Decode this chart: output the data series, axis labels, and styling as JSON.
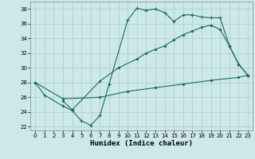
{
  "bg_color": "#cce8e8",
  "grid_color": "#aacccc",
  "line_color": "#1a6b5a",
  "line1_x": [
    0,
    1,
    3,
    4,
    5,
    6,
    7,
    8,
    10,
    11,
    12,
    13,
    14,
    15,
    16,
    17,
    18,
    19,
    20,
    21,
    22,
    23
  ],
  "line1_y": [
    28.0,
    26.3,
    24.8,
    24.2,
    22.8,
    22.2,
    23.5,
    27.8,
    36.5,
    38.1,
    37.8,
    38.0,
    37.5,
    36.3,
    37.2,
    37.2,
    36.9,
    36.8,
    36.8,
    33.0,
    30.5,
    29.0
  ],
  "line2_x": [
    3,
    4,
    7,
    9,
    11,
    12,
    13,
    14,
    15,
    16,
    17,
    18,
    19,
    20,
    21,
    22,
    23
  ],
  "line2_y": [
    25.5,
    24.3,
    28.2,
    30.0,
    31.2,
    32.0,
    32.5,
    33.0,
    33.8,
    34.5,
    35.0,
    35.5,
    35.8,
    35.2,
    33.0,
    30.5,
    29.0
  ],
  "line3_x": [
    0,
    3,
    7,
    10,
    13,
    16,
    19,
    22,
    23
  ],
  "line3_y": [
    28.0,
    25.8,
    26.0,
    26.8,
    27.3,
    27.8,
    28.3,
    28.7,
    29.0
  ],
  "xlim": [
    -0.5,
    23.5
  ],
  "ylim": [
    21.5,
    39.0
  ],
  "yticks": [
    22,
    24,
    26,
    28,
    30,
    32,
    34,
    36,
    38
  ],
  "xticks": [
    0,
    1,
    2,
    3,
    4,
    5,
    6,
    7,
    8,
    9,
    10,
    11,
    12,
    13,
    14,
    15,
    16,
    17,
    18,
    19,
    20,
    21,
    22,
    23
  ],
  "xlabel": "Humidex (Indice chaleur)",
  "label_fontsize": 6.5,
  "tick_fontsize": 5.0
}
